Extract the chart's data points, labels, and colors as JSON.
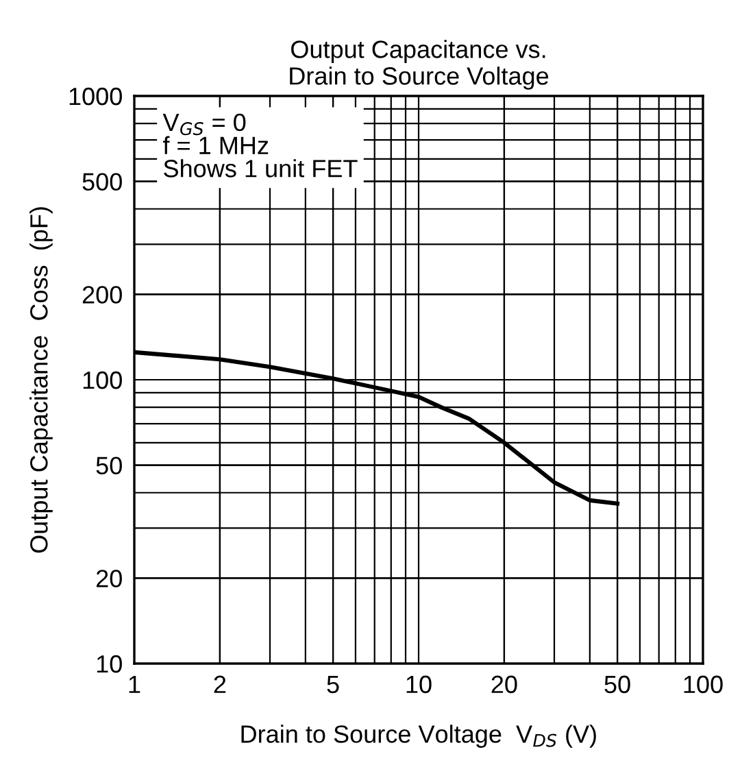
{
  "chart_data": {
    "type": "line",
    "title": "Output Capacitance vs.\nDrain to Source Voltage",
    "xlabel": "Drain to Source Voltage  V$_{DS}$ (V)",
    "ylabel": "Output Capacitance  Coss  (pF)",
    "x": [
      1,
      2,
      3,
      5,
      7,
      10,
      12,
      15,
      20,
      30,
      40,
      50
    ],
    "series": [
      {
        "color": "#000000",
        "values": [
          125,
          118,
          111,
          101,
          94,
          87,
          80,
          73,
          60,
          43.5,
          37.6,
          36.6
        ]
      }
    ],
    "log": "xy",
    "xlim": [
      1,
      100
    ],
    "ylim": [
      10,
      1000
    ],
    "xticks": [
      1,
      2,
      5,
      10,
      20,
      50,
      100
    ],
    "yticks": [
      10,
      20,
      50,
      100,
      200,
      500,
      1000
    ],
    "grid": true,
    "marker": "none",
    "line_style": "solid",
    "annotations": [
      "V$_{GS}$ = 0\nf = 1 MHz\nShows 1 unit FET"
    ]
  }
}
